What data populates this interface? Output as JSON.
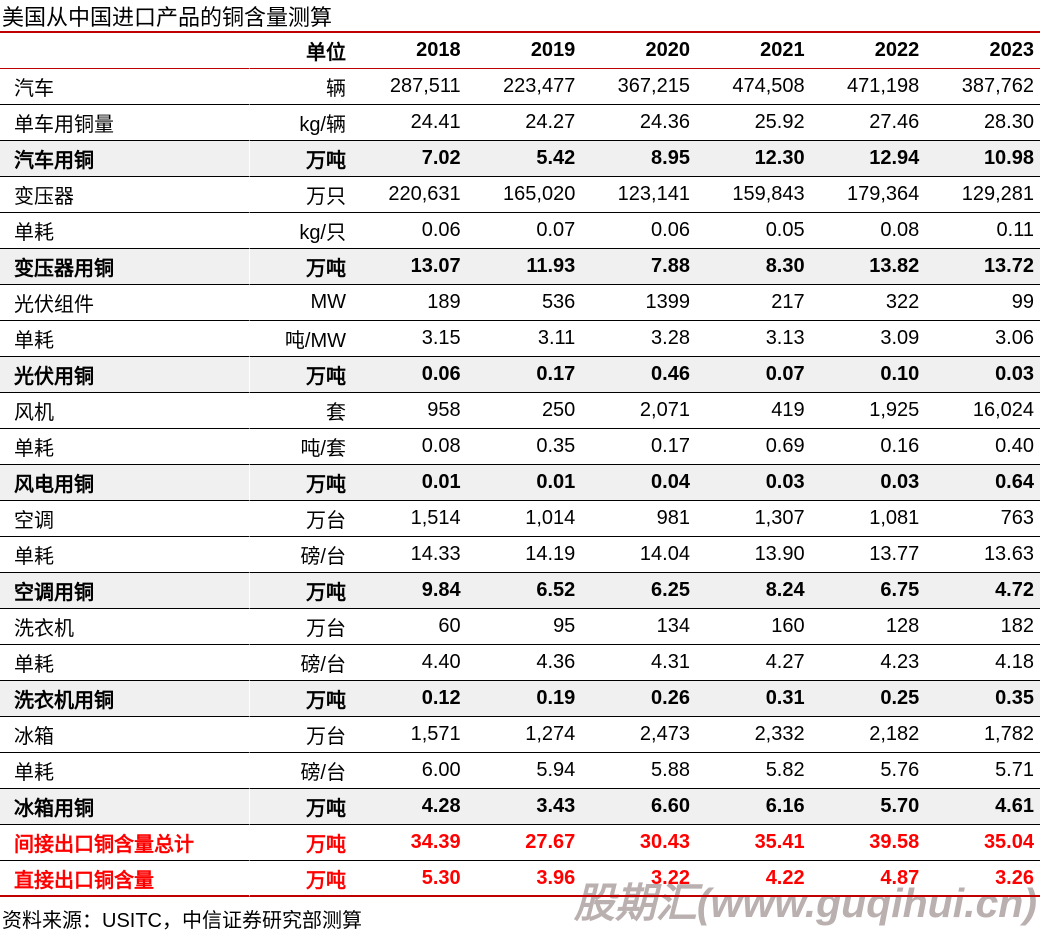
{
  "title": "美国从中国进口产品的铜含量测算",
  "source": "资料来源：USITC，中信证券研究部测算",
  "watermark": "股期汇(www.guqihui.cn)",
  "colors": {
    "accent_line": "#C00000",
    "total_text": "#FF0000",
    "subtotal_row_bg": "#F0F0F0",
    "row_border": "#000000",
    "watermark": "#B9B0AF"
  },
  "chart_data": {
    "type": "table",
    "title": "美国从中国进口产品的铜含量测算",
    "columns": [
      "",
      "单位",
      "2018",
      "2019",
      "2020",
      "2021",
      "2022",
      "2023"
    ],
    "rows": [
      {
        "label": "汽车",
        "unit": "辆",
        "style": "normal",
        "values": [
          "287,511",
          "223,477",
          "367,215",
          "474,508",
          "471,198",
          "387,762"
        ]
      },
      {
        "label": "单车用铜量",
        "unit": "kg/辆",
        "style": "normal",
        "values": [
          "24.41",
          "24.27",
          "24.36",
          "25.92",
          "27.46",
          "28.30"
        ]
      },
      {
        "label": "汽车用铜",
        "unit": "万吨",
        "style": "subtotal",
        "values": [
          "7.02",
          "5.42",
          "8.95",
          "12.30",
          "12.94",
          "10.98"
        ]
      },
      {
        "label": "变压器",
        "unit": "万只",
        "style": "normal",
        "values": [
          "220,631",
          "165,020",
          "123,141",
          "159,843",
          "179,364",
          "129,281"
        ]
      },
      {
        "label": "单耗",
        "unit": "kg/只",
        "style": "normal",
        "values": [
          "0.06",
          "0.07",
          "0.06",
          "0.05",
          "0.08",
          "0.11"
        ]
      },
      {
        "label": "变压器用铜",
        "unit": "万吨",
        "style": "subtotal",
        "values": [
          "13.07",
          "11.93",
          "7.88",
          "8.30",
          "13.82",
          "13.72"
        ]
      },
      {
        "label": "光伏组件",
        "unit": "MW",
        "style": "normal",
        "values": [
          "189",
          "536",
          "1399",
          "217",
          "322",
          "99"
        ]
      },
      {
        "label": "单耗",
        "unit": "吨/MW",
        "style": "normal",
        "values": [
          "3.15",
          "3.11",
          "3.28",
          "3.13",
          "3.09",
          "3.06"
        ]
      },
      {
        "label": "光伏用铜",
        "unit": "万吨",
        "style": "subtotal",
        "values": [
          "0.06",
          "0.17",
          "0.46",
          "0.07",
          "0.10",
          "0.03"
        ]
      },
      {
        "label": "风机",
        "unit": "套",
        "style": "normal",
        "values": [
          "958",
          "250",
          "2,071",
          "419",
          "1,925",
          "16,024"
        ]
      },
      {
        "label": "单耗",
        "unit": "吨/套",
        "style": "normal",
        "values": [
          "0.08",
          "0.35",
          "0.17",
          "0.69",
          "0.16",
          "0.40"
        ]
      },
      {
        "label": "风电用铜",
        "unit": "万吨",
        "style": "subtotal",
        "values": [
          "0.01",
          "0.01",
          "0.04",
          "0.03",
          "0.03",
          "0.64"
        ]
      },
      {
        "label": "空调",
        "unit": "万台",
        "style": "normal",
        "values": [
          "1,514",
          "1,014",
          "981",
          "1,307",
          "1,081",
          "763"
        ]
      },
      {
        "label": "单耗",
        "unit": "磅/台",
        "style": "normal",
        "values": [
          "14.33",
          "14.19",
          "14.04",
          "13.90",
          "13.77",
          "13.63"
        ]
      },
      {
        "label": "空调用铜",
        "unit": "万吨",
        "style": "subtotal",
        "values": [
          "9.84",
          "6.52",
          "6.25",
          "8.24",
          "6.75",
          "4.72"
        ]
      },
      {
        "label": "洗衣机",
        "unit": "万台",
        "style": "normal",
        "values": [
          "60",
          "95",
          "134",
          "160",
          "128",
          "182"
        ]
      },
      {
        "label": "单耗",
        "unit": "磅/台",
        "style": "normal",
        "values": [
          "4.40",
          "4.36",
          "4.31",
          "4.27",
          "4.23",
          "4.18"
        ]
      },
      {
        "label": "洗衣机用铜",
        "unit": "万吨",
        "style": "subtotal",
        "values": [
          "0.12",
          "0.19",
          "0.26",
          "0.31",
          "0.25",
          "0.35"
        ]
      },
      {
        "label": "冰箱",
        "unit": "万台",
        "style": "normal",
        "values": [
          "1,571",
          "1,274",
          "2,473",
          "2,332",
          "2,182",
          "1,782"
        ]
      },
      {
        "label": "单耗",
        "unit": "磅/台",
        "style": "normal",
        "values": [
          "6.00",
          "5.94",
          "5.88",
          "5.82",
          "5.76",
          "5.71"
        ]
      },
      {
        "label": "冰箱用铜",
        "unit": "万吨",
        "style": "subtotal",
        "values": [
          "4.28",
          "3.43",
          "6.60",
          "6.16",
          "5.70",
          "4.61"
        ]
      },
      {
        "label": "间接出口铜含量总计",
        "unit": "万吨",
        "style": "total",
        "values": [
          "34.39",
          "27.67",
          "30.43",
          "35.41",
          "39.58",
          "35.04"
        ]
      },
      {
        "label": "直接出口铜含量",
        "unit": "万吨",
        "style": "total",
        "values": [
          "5.30",
          "3.96",
          "3.22",
          "4.22",
          "4.87",
          "3.26"
        ]
      }
    ]
  }
}
